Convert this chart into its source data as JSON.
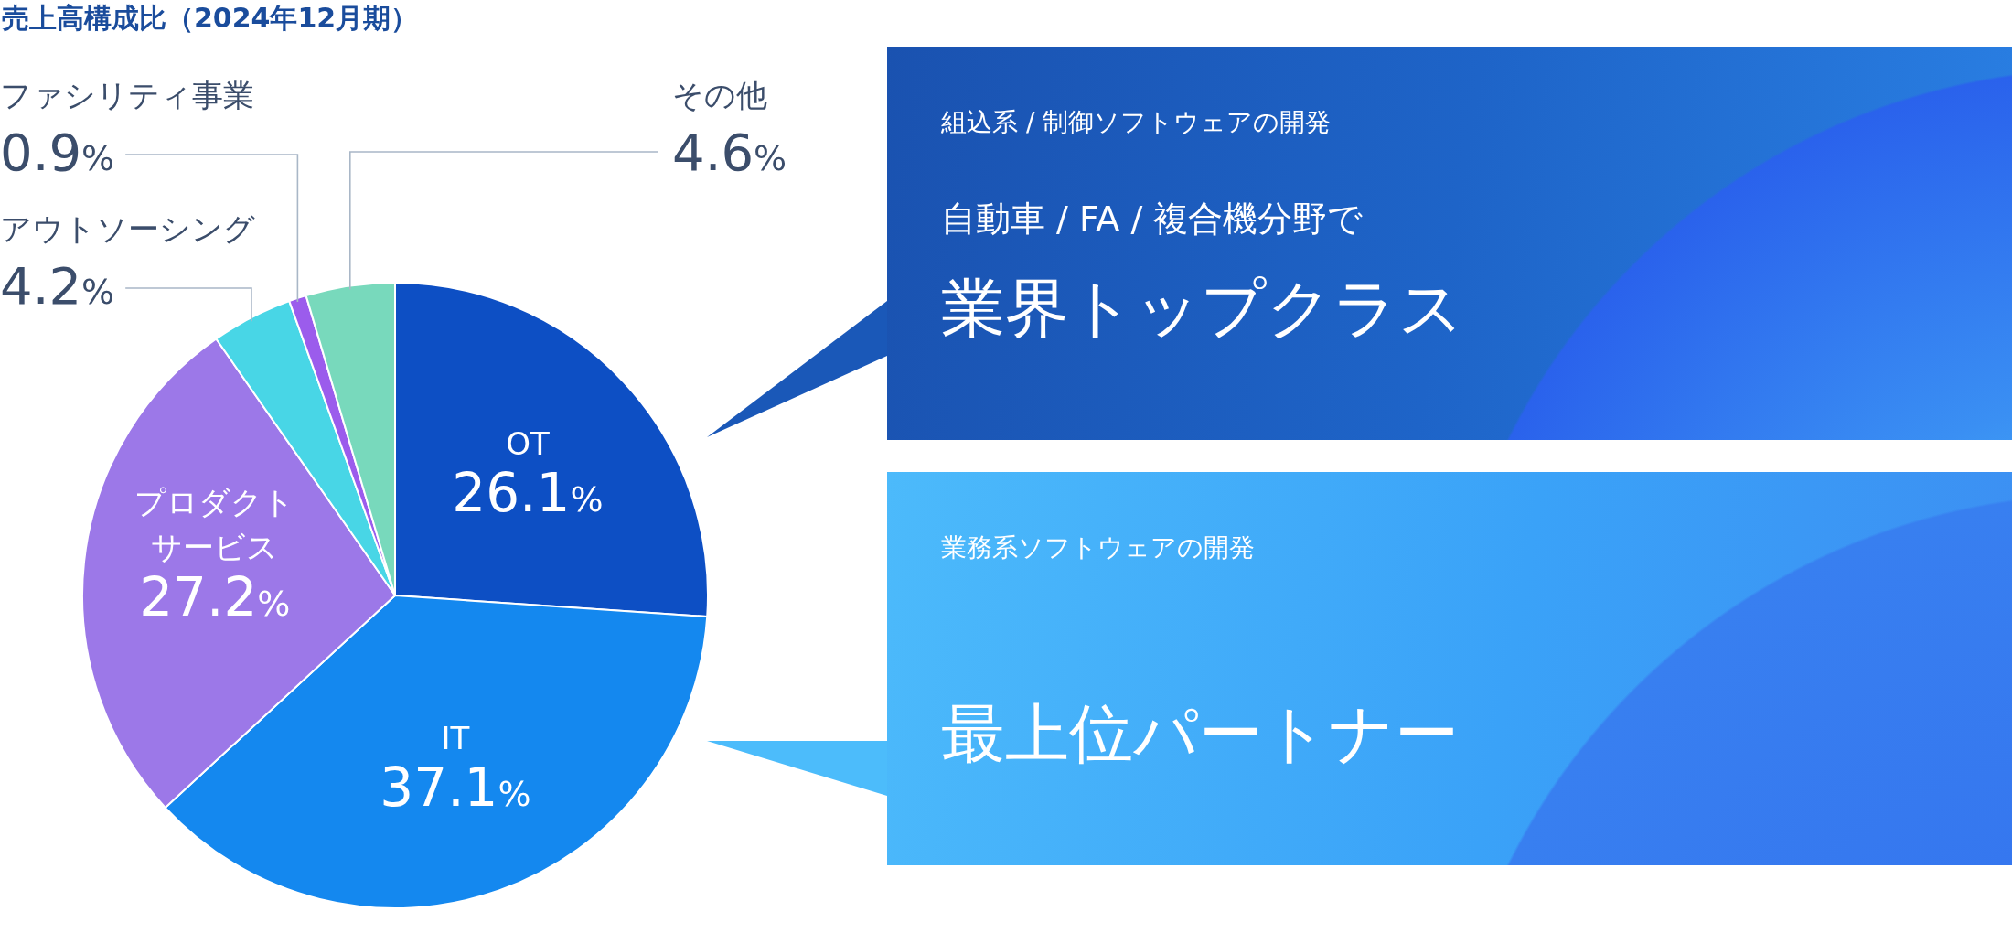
{
  "chart_data": [
    {
      "type": "pie",
      "title": "売上高構成比（2024年12月期）",
      "categories": [
        "OT",
        "IT",
        "プロダクトサービス",
        "アウトソーシング",
        "ファシリティ事業",
        "その他"
      ],
      "values": [
        26.1,
        37.1,
        27.2,
        4.2,
        0.9,
        4.6
      ],
      "value_labels": [
        "26.1%",
        "37.1%",
        "27.2%",
        "4.2%",
        "0.9%",
        "4.6%"
      ],
      "colors": [
        "#0d4fc4",
        "#1488ef",
        "#9c78e8",
        "#48d6e6",
        "#9b5cec",
        "#78d9bc"
      ]
    },
    {
      "type": "other",
      "subtitle": "組込系 / 制御ソフトウェアの開発",
      "annotations": [
        "自動車 / FA / 複合機分野で"
      ],
      "title": "業界トップクラス"
    },
    {
      "type": "other",
      "subtitle": "業務系ソフトウェアの開発",
      "title": "最上位パートナー"
    }
  ]
}
